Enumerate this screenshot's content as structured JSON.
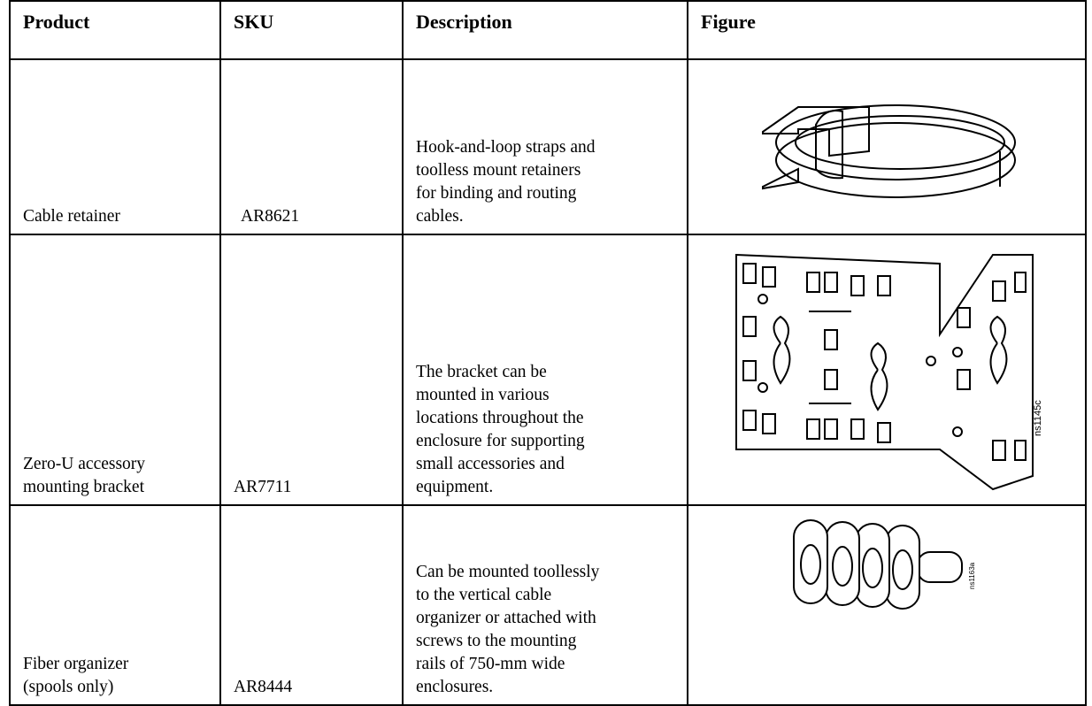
{
  "table": {
    "header": [
      "Product",
      "SKU",
      "Description",
      "Figure"
    ],
    "rows": [
      {
        "product": [
          "Cable retainer"
        ],
        "sku": "AR8621",
        "description": [
          "Hook-and-loop straps and",
          "toolless mount retainers",
          "for binding and routing",
          "cables."
        ],
        "figure_label": null
      },
      {
        "product": [
          "Zero-U accessory",
          "mounting bracket"
        ],
        "sku": "AR7711",
        "description": [
          "The bracket can be",
          "mounted in various",
          "locations throughout the",
          "enclosure for supporting",
          "small accessories and",
          "equipment."
        ],
        "figure_label": "ns1145c"
      },
      {
        "product": [
          "Fiber organizer",
          "(spools only)"
        ],
        "sku": "AR8444",
        "description": [
          "Can be mounted toollessly",
          "to the vertical cable",
          "organizer or attached with",
          "screws to the mounting",
          "rails of 750-mm wide",
          "enclosures."
        ],
        "figure_label": "ns1163a"
      }
    ]
  }
}
